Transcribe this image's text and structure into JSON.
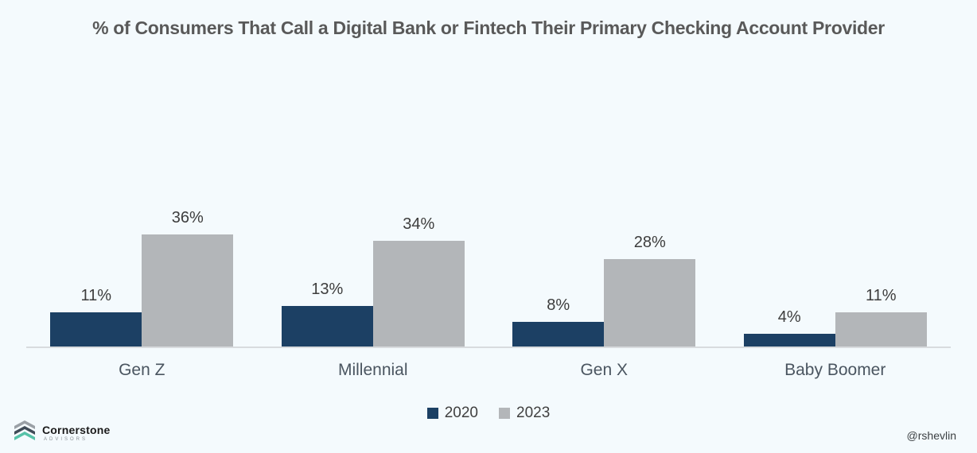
{
  "title": "% of Consumers That Call a Digital Bank or Fintech Their Primary Checking Account Provider",
  "chart_data": {
    "type": "bar",
    "categories": [
      "Gen Z",
      "Millennial",
      "Gen X",
      "Baby Boomer"
    ],
    "series": [
      {
        "name": "2020",
        "color": "#1C4064",
        "values": [
          11,
          13,
          8,
          4
        ],
        "labels": [
          "11%",
          "13%",
          "8%",
          "4%"
        ]
      },
      {
        "name": "2023",
        "color": "#B3B6B9",
        "values": [
          36,
          34,
          28,
          11
        ],
        "labels": [
          "36%",
          "34%",
          "28%",
          "11%"
        ]
      }
    ],
    "ylim": [
      0,
      40
    ],
    "value_labels_shown": true,
    "y_axis_shown": false,
    "grid": false,
    "legend_position": "bottom"
  },
  "footer": {
    "brand": "Cornerstone",
    "brand_sub": "ADVISORS",
    "handle": "@rshevlin"
  },
  "colors": {
    "background": "#F4FAFD",
    "title_text": "#595959",
    "axis_line": "#D8DBDE",
    "value_label": "#3D3D3D",
    "category_label": "#4A5560",
    "logo_top": "#9AA0A6",
    "logo_mid": "#3F4B57",
    "logo_bottom": "#56C2A8"
  }
}
